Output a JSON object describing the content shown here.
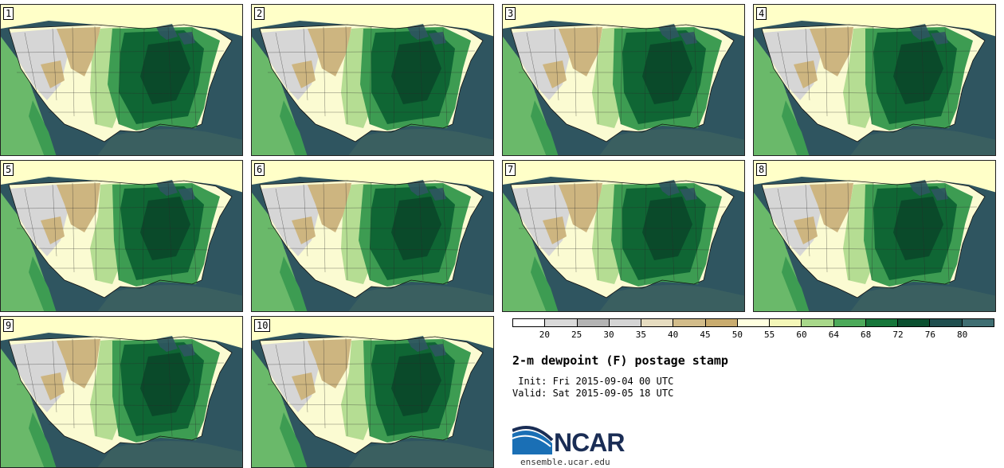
{
  "panels": [
    {
      "label": "1"
    },
    {
      "label": "2"
    },
    {
      "label": "3"
    },
    {
      "label": "4"
    },
    {
      "label": "5"
    },
    {
      "label": "6"
    },
    {
      "label": "7"
    },
    {
      "label": "8"
    },
    {
      "label": "9"
    },
    {
      "label": "10"
    }
  ],
  "legend": {
    "ticks": [
      "20",
      "25",
      "30",
      "35",
      "40",
      "45",
      "50",
      "55",
      "60",
      "64",
      "68",
      "72",
      "76",
      "80"
    ],
    "colors": [
      "#ffffff",
      "#d9d9d9",
      "#b3b3b3",
      "#d4d4d4",
      "#e6dcc0",
      "#d2bc8a",
      "#c9ac6f",
      "#ffffe0",
      "#f4f7b8",
      "#a8d88a",
      "#4caa5a",
      "#16763a",
      "#0b5030",
      "#1f4f4f",
      "#3f6e72"
    ]
  },
  "title": "2-m dewpoint (F) postage stamp",
  "init": " Init: Fri 2015-09-04 00 UTC",
  "valid": "Valid: Sat 2015-09-05 18 UTC",
  "logo": {
    "text": "NCAR",
    "site": "ensemble.ucar.edu"
  },
  "colors": {
    "ocean_gulf": "#3a5f60",
    "ocean_atl": "#2f5560",
    "pacific": "#6ab96a",
    "canada": "#ffffc8",
    "dry_gray": "#d6d6d6",
    "dry_tan": "#cdb580",
    "light_yellow": "#fbfbd2",
    "pale_green": "#b5dd93",
    "mid_green": "#3d9c52",
    "dark_green": "#0f6634",
    "deep_green": "#0a4a2a"
  }
}
